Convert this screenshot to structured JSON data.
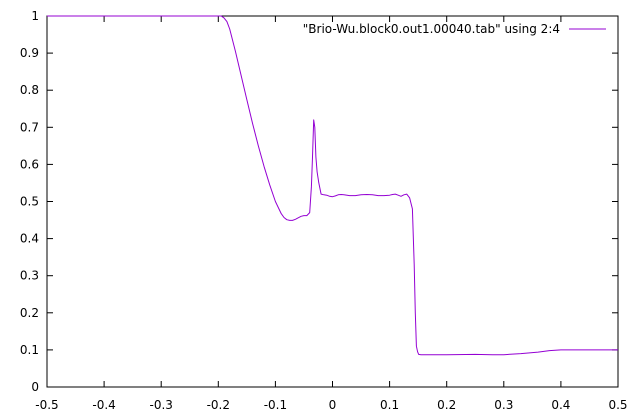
{
  "chart_data": {
    "type": "line",
    "title": "",
    "xlabel": "",
    "ylabel": "",
    "xlim": [
      -0.5,
      0.5
    ],
    "ylim": [
      0,
      1
    ],
    "x_ticks": [
      -0.5,
      -0.4,
      -0.3,
      -0.2,
      -0.1,
      0,
      0.1,
      0.2,
      0.3,
      0.4,
      0.5
    ],
    "x_tick_labels": [
      "-0.5",
      "-0.4",
      "-0.3",
      "-0.2",
      "-0.1",
      "0",
      "0.1",
      "0.2",
      "0.3",
      "0.4",
      "0.5"
    ],
    "y_ticks": [
      0,
      0.1,
      0.2,
      0.3,
      0.4,
      0.5,
      0.6,
      0.7,
      0.8,
      0.9,
      1
    ],
    "y_tick_labels": [
      "0",
      "0.1",
      "0.2",
      "0.3",
      "0.4",
      "0.5",
      "0.6",
      "0.7",
      "0.8",
      "0.9",
      "1"
    ],
    "grid": false,
    "legend_position": "top-right",
    "series": [
      {
        "name": "\"Brio-Wu.block0.out1.00040.tab\" using 2:4",
        "color": "#9400d3",
        "x": [
          -0.5,
          -0.195,
          -0.19,
          -0.185,
          -0.18,
          -0.17,
          -0.16,
          -0.15,
          -0.14,
          -0.13,
          -0.12,
          -0.11,
          -0.1,
          -0.09,
          -0.085,
          -0.08,
          -0.075,
          -0.07,
          -0.065,
          -0.06,
          -0.055,
          -0.05,
          -0.045,
          -0.04,
          -0.037,
          -0.035,
          -0.033,
          -0.031,
          -0.029,
          -0.027,
          -0.024,
          -0.02,
          -0.015,
          -0.01,
          -0.005,
          0,
          0.005,
          0.01,
          0.015,
          0.02,
          0.03,
          0.04,
          0.05,
          0.06,
          0.07,
          0.08,
          0.09,
          0.1,
          0.105,
          0.11,
          0.115,
          0.12,
          0.125,
          0.13,
          0.135,
          0.14,
          0.143,
          0.145,
          0.147,
          0.149,
          0.151,
          0.155,
          0.16,
          0.2,
          0.25,
          0.28,
          0.3,
          0.33,
          0.36,
          0.38,
          0.4,
          0.45,
          0.5
        ],
        "y": [
          1.0,
          1.0,
          0.995,
          0.985,
          0.965,
          0.905,
          0.84,
          0.775,
          0.71,
          0.65,
          0.595,
          0.545,
          0.5,
          0.468,
          0.457,
          0.451,
          0.449,
          0.449,
          0.452,
          0.456,
          0.46,
          0.462,
          0.462,
          0.47,
          0.54,
          0.62,
          0.72,
          0.7,
          0.62,
          0.58,
          0.55,
          0.52,
          0.518,
          0.517,
          0.514,
          0.513,
          0.515,
          0.518,
          0.519,
          0.518,
          0.516,
          0.516,
          0.518,
          0.519,
          0.518,
          0.516,
          0.516,
          0.517,
          0.519,
          0.52,
          0.517,
          0.514,
          0.518,
          0.52,
          0.51,
          0.48,
          0.33,
          0.2,
          0.11,
          0.095,
          0.088,
          0.087,
          0.087,
          0.087,
          0.088,
          0.087,
          0.087,
          0.09,
          0.094,
          0.098,
          0.1,
          0.1,
          0.1
        ]
      }
    ]
  }
}
